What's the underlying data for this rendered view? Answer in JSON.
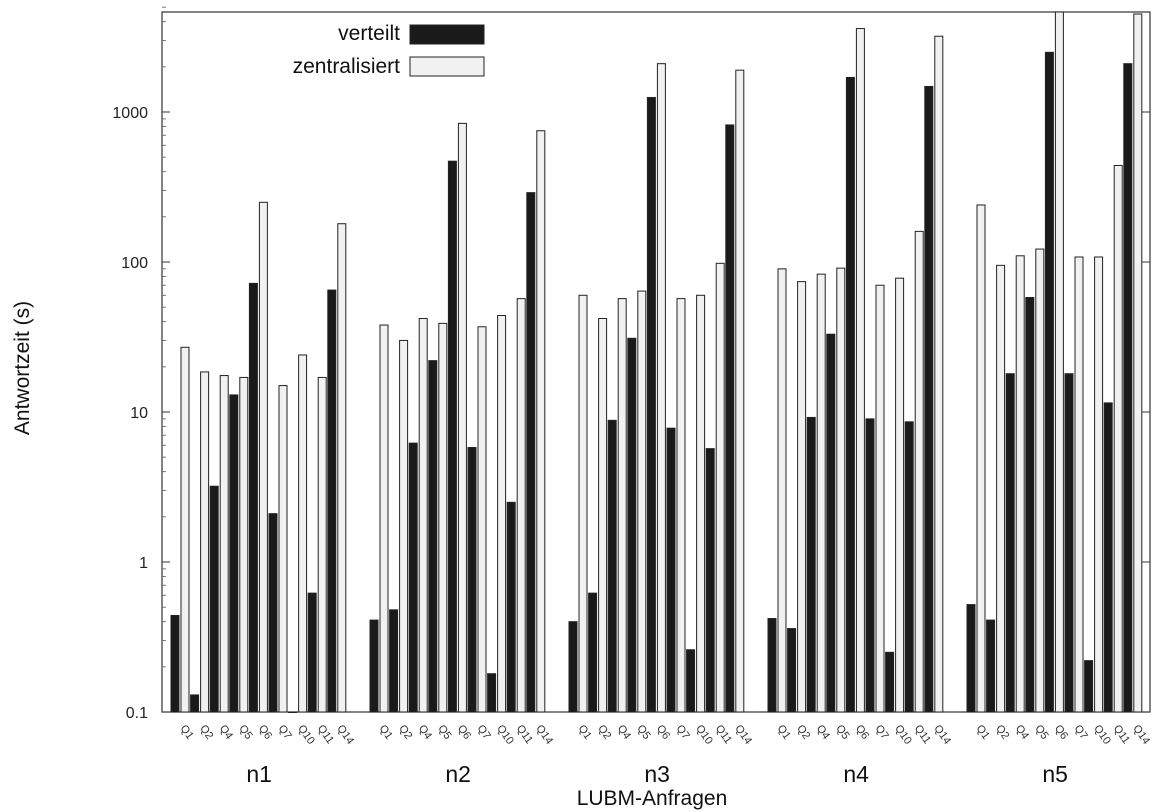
{
  "chart_data": {
    "type": "bar",
    "xlabel": "LUBM-Anfragen",
    "ylabel": "Antwortzeit (s)",
    "yscale": "log",
    "ylim": [
      0.1,
      5000
    ],
    "yticks": [
      "0.1",
      "1",
      "10",
      "100",
      "1000"
    ],
    "ytick_values": [
      0.1,
      1,
      10,
      100,
      1000
    ],
    "legend": {
      "placement": "top-center"
    },
    "queries": [
      "Q1",
      "Q2",
      "Q4",
      "Q5",
      "Q6",
      "Q7",
      "Q10",
      "Q11",
      "Q14"
    ],
    "query_tick_labels": [
      "Q1",
      "Q2",
      "Q4",
      "Q5",
      "Q6",
      "Q7",
      "Q10",
      "Q11",
      "Q14"
    ],
    "groups": [
      {
        "name": "n1",
        "series": [
          {
            "name": "verteilt",
            "values": [
              0.44,
              0.13,
              3.2,
              13,
              72,
              2.1,
              0.1,
              0.62,
              65
            ]
          },
          {
            "name": "zentralisiert",
            "values": [
              27,
              18.5,
              17.5,
              17,
              250,
              15,
              24,
              17,
              180
            ]
          }
        ]
      },
      {
        "name": "n2",
        "series": [
          {
            "name": "verteilt",
            "values": [
              0.41,
              0.48,
              6.2,
              22,
              470,
              5.8,
              0.18,
              2.5,
              290
            ]
          },
          {
            "name": "zentralisiert",
            "values": [
              38,
              30,
              42,
              39,
              840,
              37,
              44,
              57,
              750
            ]
          }
        ]
      },
      {
        "name": "n3",
        "series": [
          {
            "name": "verteilt",
            "values": [
              0.4,
              0.62,
              8.8,
              31,
              1250,
              7.8,
              0.26,
              5.7,
              820
            ]
          },
          {
            "name": "zentralisiert",
            "values": [
              60,
              42,
              57,
              64,
              2100,
              57,
              60,
              98,
              1900
            ]
          }
        ]
      },
      {
        "name": "n4",
        "series": [
          {
            "name": "verteilt",
            "values": [
              0.42,
              0.36,
              9.2,
              33,
              1700,
              9,
              0.25,
              8.6,
              1480
            ]
          },
          {
            "name": "zentralisiert",
            "values": [
              90,
              74,
              83,
              91,
              3600,
              70,
              78,
              160,
              3200
            ]
          }
        ]
      },
      {
        "name": "n5",
        "series": [
          {
            "name": "verteilt",
            "values": [
              0.52,
              0.41,
              18,
              58,
              2500,
              18,
              0.22,
              11.5,
              2100
            ]
          },
          {
            "name": "zentralisiert",
            "values": [
              240,
              95,
              110,
              122,
              4800,
              108,
              108,
              440,
              4500
            ]
          }
        ]
      }
    ],
    "colors": {
      "verteilt": "#1a1a1a",
      "zentralisiert": "#f1f1f1",
      "outline": "#222222"
    }
  }
}
